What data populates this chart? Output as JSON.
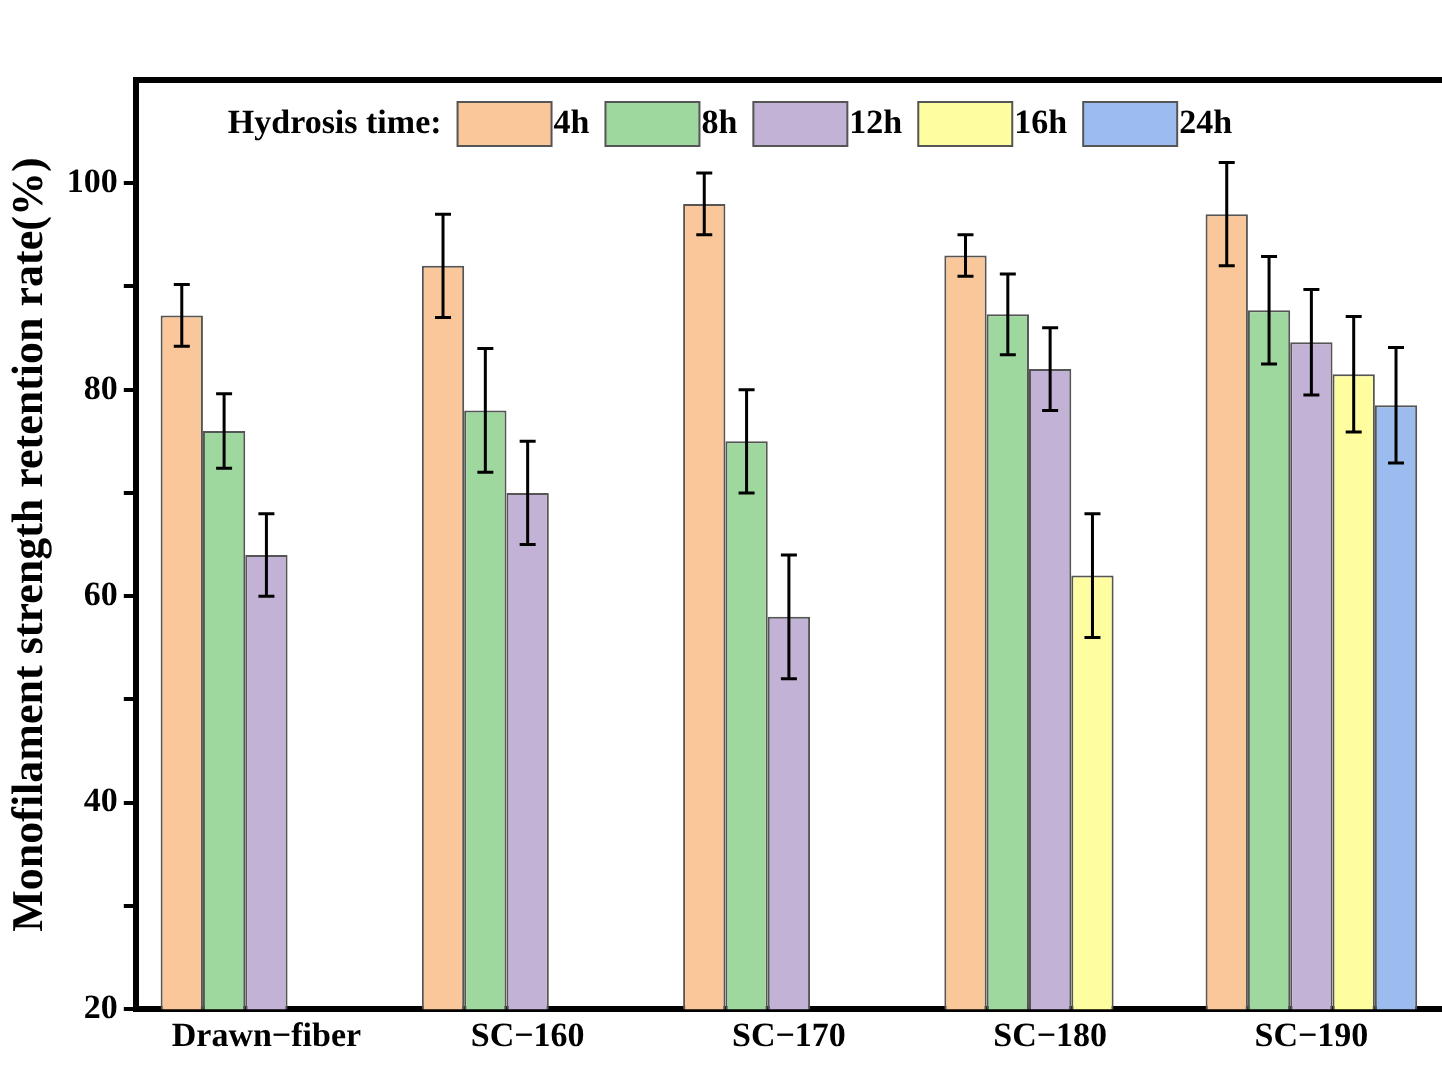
{
  "chart_data": {
    "type": "bar",
    "ylabel": "Monofilament strength retention rate(%)",
    "legend_title": "Hydrosis time:",
    "categories": [
      "Drawn−fiber",
      "SC−160",
      "SC−170",
      "SC−180",
      "SC−190"
    ],
    "series": [
      {
        "name": "4h",
        "color": "#f9c799",
        "values": [
          87.2,
          92,
          98,
          93,
          97
        ],
        "errors": [
          3,
          5,
          3,
          2,
          5
        ]
      },
      {
        "name": "8h",
        "color": "#9fd89f",
        "values": [
          76,
          78,
          75,
          87.3,
          87.7
        ],
        "errors": [
          3.6,
          6,
          5,
          3.9,
          5.2
        ]
      },
      {
        "name": "12h",
        "color": "#c2b2d6",
        "values": [
          64,
          70,
          58,
          82,
          84.6
        ],
        "errors": [
          4,
          5,
          6,
          4,
          5.1
        ]
      },
      {
        "name": "16h",
        "color": "#fefea0",
        "values": [
          null,
          null,
          null,
          62,
          81.5
        ],
        "errors": [
          null,
          null,
          null,
          6,
          5.6
        ]
      },
      {
        "name": "24h",
        "color": "#9cbcef",
        "values": [
          null,
          null,
          null,
          null,
          78.5
        ],
        "errors": [
          null,
          null,
          null,
          null,
          5.6
        ]
      }
    ],
    "ylim": [
      20,
      110
    ],
    "yticks": [
      20,
      {
        "value": 30,
        "label": null
      },
      40,
      {
        "value": 50,
        "label": null
      },
      60,
      {
        "value": 70,
        "label": null
      },
      80,
      {
        "value": 90,
        "label": null
      },
      100
    ],
    "grid": false,
    "legend": "top"
  }
}
